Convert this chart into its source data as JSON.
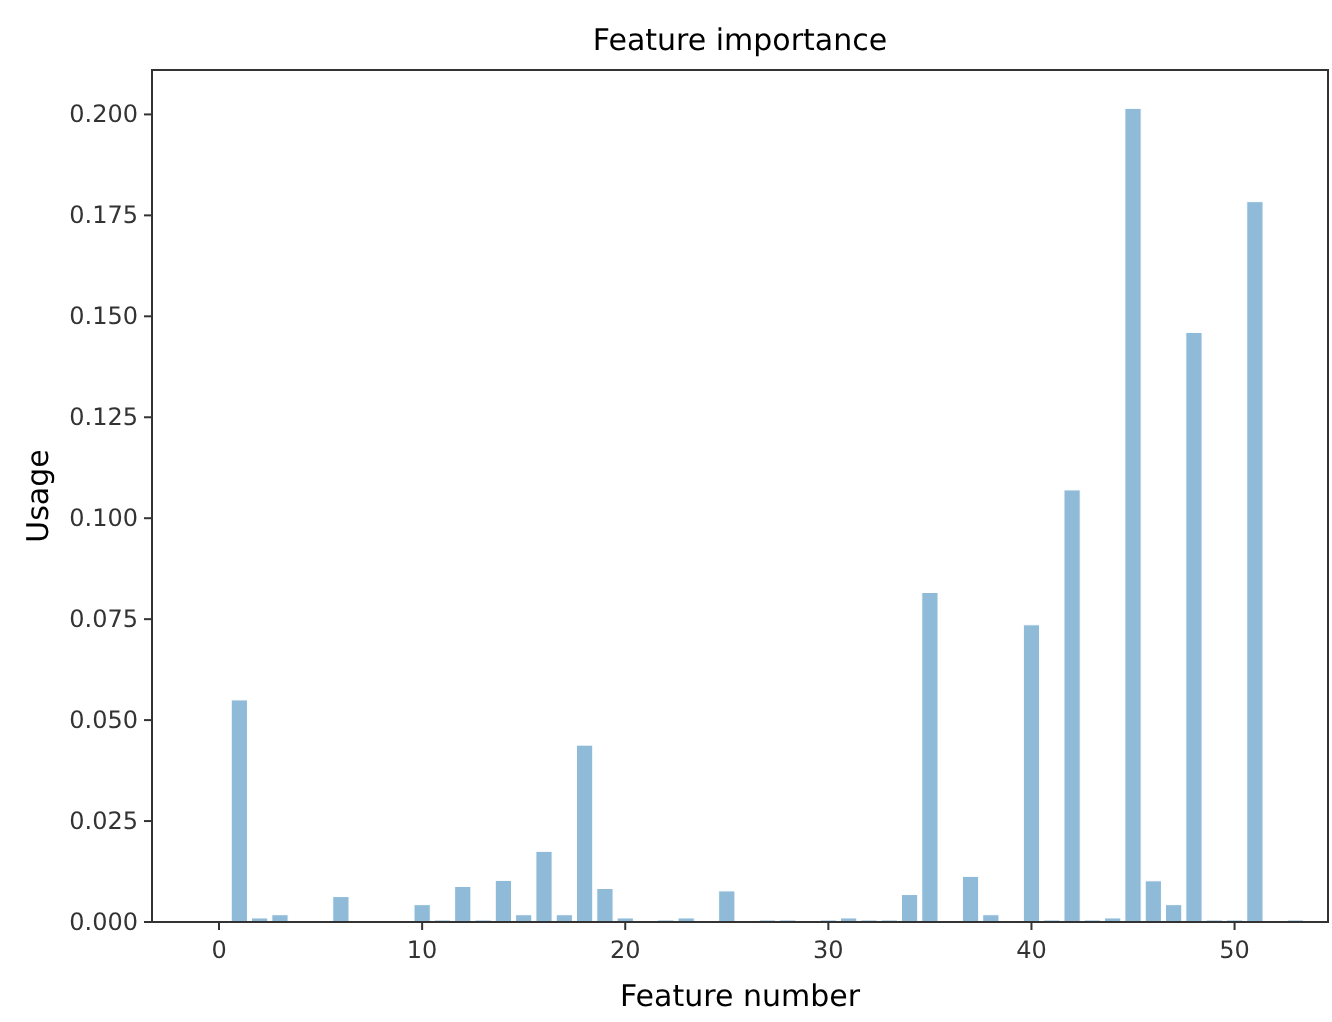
{
  "chart_data": {
    "type": "bar",
    "title": "Feature importance",
    "xlabel": "Feature number",
    "ylabel": "Usage",
    "x": [
      0,
      1,
      2,
      3,
      4,
      5,
      6,
      7,
      8,
      9,
      10,
      11,
      12,
      13,
      14,
      15,
      16,
      17,
      18,
      19,
      20,
      21,
      22,
      23,
      24,
      25,
      26,
      27,
      28,
      29,
      30,
      31,
      32,
      33,
      34,
      35,
      36,
      37,
      38,
      39,
      40,
      41,
      42,
      43,
      44,
      45,
      46,
      47,
      48,
      49,
      50,
      51,
      52,
      53
    ],
    "values": [
      0,
      0.055,
      0.001,
      0.0018,
      0,
      0,
      0.0063,
      0,
      0,
      0,
      0.0043,
      0.0005,
      0.0088,
      0.0005,
      0.0103,
      0.0018,
      0.0175,
      0.0018,
      0.0438,
      0.0083,
      0.001,
      0,
      0.0005,
      0.001,
      0,
      0.0077,
      0,
      0.0005,
      0.0005,
      0,
      0.0005,
      0.001,
      0.0005,
      0.0005,
      0.0068,
      0.0816,
      0,
      0.0113,
      0.0018,
      0,
      0.0736,
      0.0005,
      0.107,
      0.0005,
      0.001,
      0.2015,
      0.0102,
      0.0043,
      0.146,
      0.0005,
      0.0005,
      0.1784,
      0,
      0.0005
    ],
    "color": "#8fbbd9",
    "xlim": [
      -3.3,
      54.6
    ],
    "xticks": [
      0,
      10,
      20,
      30,
      40,
      50
    ],
    "ylim": [
      0,
      0.211
    ],
    "yticks": [
      {
        "value": 0,
        "label": "0.000"
      },
      {
        "value": 0.025,
        "label": "0.025"
      },
      {
        "value": 0.05,
        "label": "0.050"
      },
      {
        "value": 0.075,
        "label": "0.075"
      },
      {
        "value": 0.1,
        "label": "0.100"
      },
      {
        "value": 0.125,
        "label": "0.125"
      },
      {
        "value": 0.15,
        "label": "0.150"
      },
      {
        "value": 0.175,
        "label": "0.175"
      },
      {
        "value": 0.2,
        "label": "0.200"
      }
    ],
    "grid": false
  }
}
